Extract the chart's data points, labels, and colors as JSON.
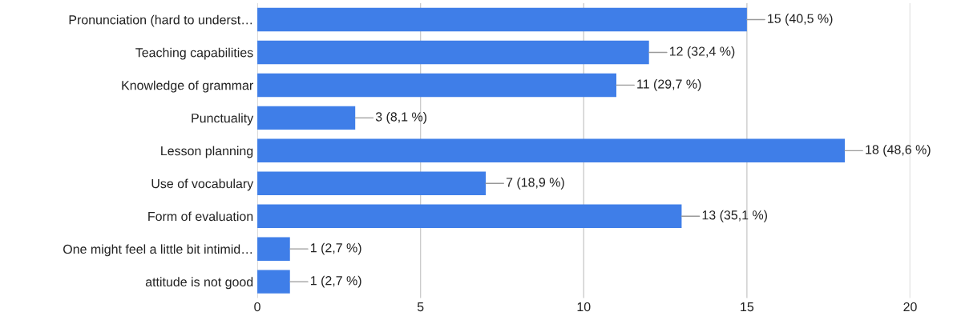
{
  "chart_data": {
    "type": "bar",
    "orientation": "horizontal",
    "categories": [
      "Pronunciation (hard to underst…",
      "Teaching capabilities",
      "Knowledge of grammar",
      "Punctuality",
      "Lesson planning",
      "Use of vocabulary",
      "Form of evaluation",
      "One might feel a little bit intimid…",
      "attitude is not good"
    ],
    "values": [
      15,
      12,
      11,
      3,
      18,
      7,
      13,
      1,
      1
    ],
    "value_labels": [
      "15 (40,5 %)",
      "12 (32,4 %)",
      "11 (29,7 %)",
      "3 (8,1 %)",
      "18 (48,6 %)",
      "7 (18,9 %)",
      "13 (35,1 %)",
      "1 (2,7 %)",
      "1 (2,7 %)"
    ],
    "color": "#3f7ee8",
    "xlim": [
      0,
      20
    ],
    "xticks": [
      0,
      5,
      10,
      15,
      20
    ],
    "grid": "x",
    "legend": false
  }
}
